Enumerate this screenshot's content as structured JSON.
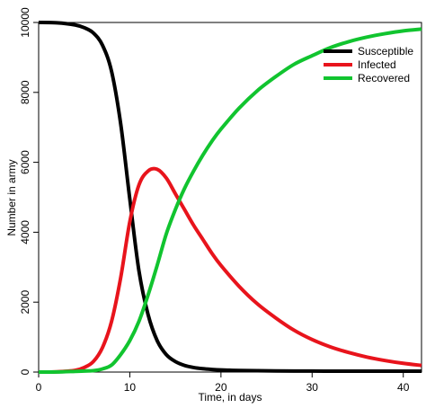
{
  "chart_data": {
    "type": "line",
    "title": "",
    "xlabel": "Time, in days",
    "ylabel": "Number in army",
    "xlim": [
      0,
      42
    ],
    "ylim": [
      0,
      10000
    ],
    "xticks": [
      0,
      10,
      20,
      30,
      40
    ],
    "yticks": [
      0,
      2000,
      4000,
      6000,
      8000,
      10000
    ],
    "grid": false,
    "legend_position": "top-right",
    "x": [
      0,
      2,
      4,
      5,
      6,
      7,
      8,
      9,
      10,
      11,
      12,
      13,
      14,
      15,
      16,
      17,
      18,
      19,
      20,
      22,
      24,
      26,
      28,
      30,
      32,
      34,
      36,
      38,
      40,
      42
    ],
    "series": [
      {
        "name": "Susceptible",
        "color": "#000000",
        "values": [
          10000,
          9990,
          9930,
          9850,
          9700,
          9350,
          8600,
          7100,
          4950,
          2900,
          1650,
          900,
          500,
          300,
          190,
          130,
          95,
          75,
          60,
          45,
          38,
          33,
          30,
          28,
          27,
          26,
          26,
          25,
          25,
          25
        ]
      },
      {
        "name": "Infected",
        "color": "#e8141c",
        "values": [
          0,
          8,
          50,
          130,
          300,
          700,
          1450,
          2700,
          4300,
          5350,
          5750,
          5800,
          5550,
          5100,
          4650,
          4200,
          3800,
          3400,
          3050,
          2450,
          1950,
          1550,
          1200,
          930,
          720,
          560,
          430,
          330,
          250,
          190
        ]
      },
      {
        "name": "Recovered",
        "color": "#11c42f",
        "values": [
          0,
          2,
          20,
          30,
          40,
          90,
          200,
          500,
          900,
          1450,
          2200,
          3050,
          3950,
          4650,
          5250,
          5750,
          6200,
          6600,
          6950,
          7550,
          8050,
          8450,
          8800,
          9050,
          9280,
          9450,
          9580,
          9680,
          9760,
          9810
        ]
      }
    ]
  }
}
